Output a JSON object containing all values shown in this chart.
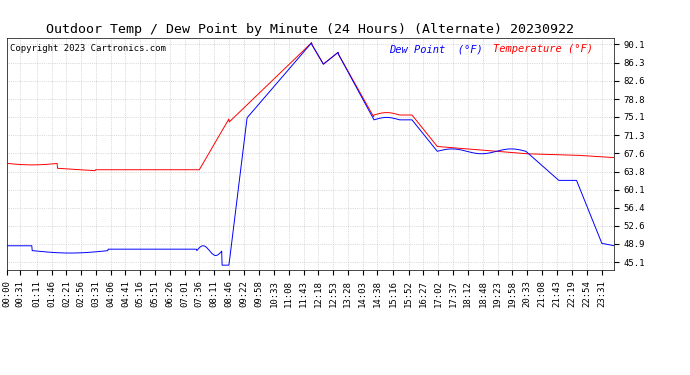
{
  "title": "Outdoor Temp / Dew Point by Minute (24 Hours) (Alternate) 20230922",
  "copyright": "Copyright 2023 Cartronics.com",
  "legend_dew": "Dew Point  (°F)",
  "legend_temp": "Temperature (°F)",
  "yticks": [
    45.1,
    48.9,
    52.6,
    56.4,
    60.1,
    63.8,
    67.6,
    71.3,
    75.1,
    78.8,
    82.6,
    86.3,
    90.1
  ],
  "ylim": [
    43.5,
    91.5
  ],
  "background_color": "#ffffff",
  "grid_color": "#bbbbbb",
  "temp_color": "#ff0000",
  "dew_color": "#0000ff",
  "title_fontsize": 9.5,
  "copyright_fontsize": 6.5,
  "legend_fontsize": 7.5,
  "tick_fontsize": 6.5
}
